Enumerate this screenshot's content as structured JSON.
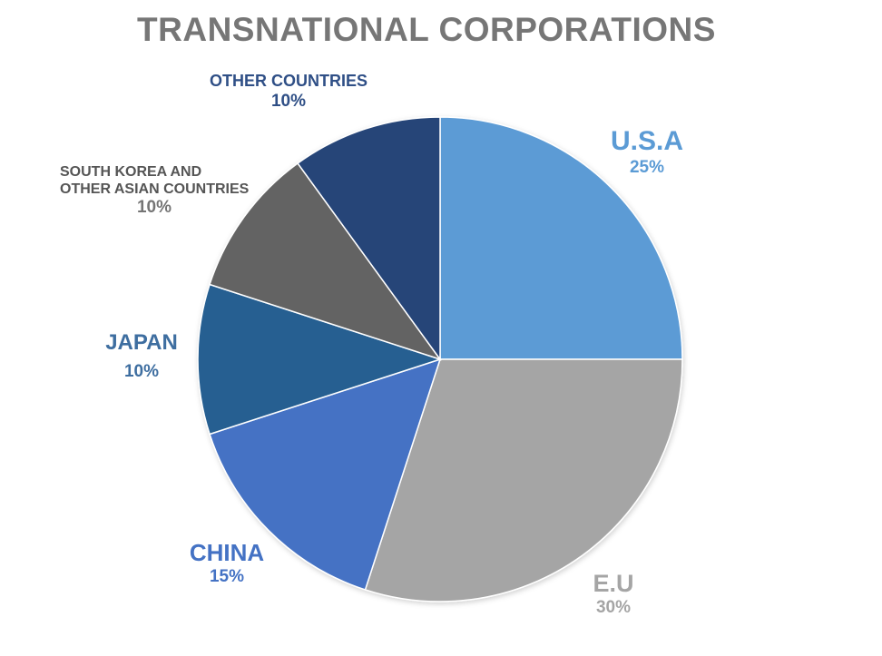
{
  "chart_data": {
    "type": "pie",
    "title": "TRANSNATIONAL CORPORATIONS",
    "slices": [
      {
        "label": "U.S.A",
        "value": 25,
        "value_label": "25%",
        "color": "#5b9bd5"
      },
      {
        "label": "E.U",
        "value": 30,
        "value_label": "30%",
        "color": "#a5a5a5"
      },
      {
        "label": "CHINA",
        "value": 15,
        "value_label": "15%",
        "color": "#4472c4"
      },
      {
        "label": "JAPAN",
        "value": 10,
        "value_label": "10%",
        "color": "#255e91"
      },
      {
        "label": "SOUTH KOREA AND\nOTHER ASIAN COUNTRIES",
        "value": 10,
        "value_label": "10%",
        "color": "#636363"
      },
      {
        "label": "OTHER COUNTRIES",
        "value": 10,
        "value_label": "10%",
        "color": "#264478"
      }
    ],
    "start": "12 o'clock",
    "direction": "clockwise",
    "legend": "none"
  }
}
